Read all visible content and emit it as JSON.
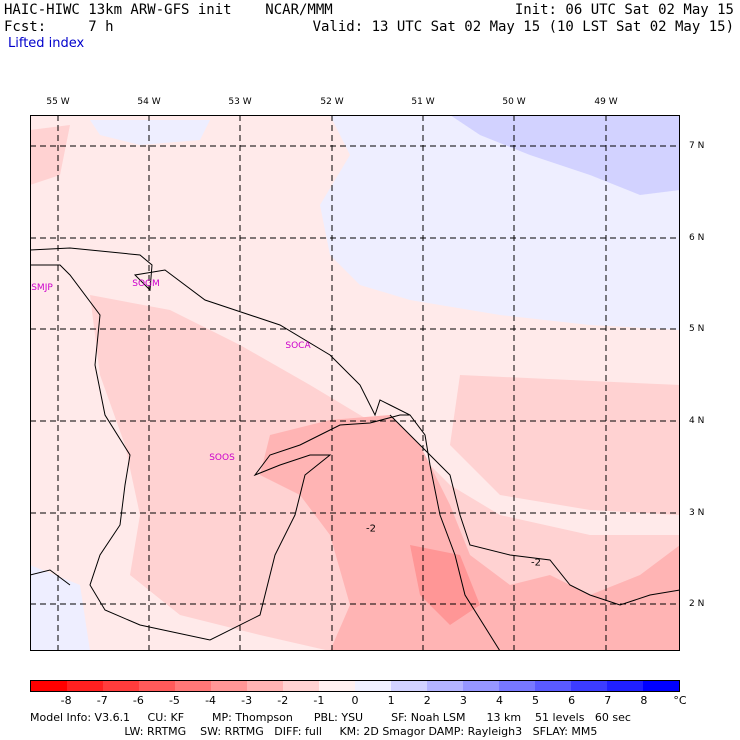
{
  "header": {
    "line1_left": "HAIC-HIWC 13km ARW-GFS init    NCAR/MMM",
    "line1_right": "Init: 06 UTC Sat 02 May 15",
    "line2_left": "Fcst:     7 h",
    "line2_right": "Valid: 13 UTC Sat 02 May 15 (10 LST Sat 02 May 15)",
    "field_name": "Lifted index"
  },
  "axes": {
    "lon_labels": [
      "55 W",
      "54 W",
      "53 W",
      "52 W",
      "51 W",
      "50 W",
      "49 W"
    ],
    "lat_labels": [
      "7 N",
      "6 N",
      "5 N",
      "4 N",
      "3 N",
      "2 N"
    ]
  },
  "stations": [
    "SMJP",
    "SOGM",
    "SOCA",
    "SOOS"
  ],
  "contour_labels": [
    "-2",
    "-2"
  ],
  "colorbar": {
    "labels": [
      "-8",
      "-7",
      "-6",
      "-5",
      "-4",
      "-3",
      "-2",
      "-1",
      "0",
      "1",
      "2",
      "3",
      "4",
      "5",
      "6",
      "7",
      "8",
      "°C"
    ],
    "colors": [
      "#ff0000",
      "#ff2020",
      "#ff3c3c",
      "#ff5a5a",
      "#ff7878",
      "#ff9696",
      "#ffb4b4",
      "#ffd2d2",
      "#fff0f0",
      "#f0f0ff",
      "#d2d2ff",
      "#b4b4ff",
      "#9696ff",
      "#7878ff",
      "#5a5aff",
      "#3c3cff",
      "#2020ff",
      "#0000ff"
    ]
  },
  "model_info": {
    "line1": "Model Info: V3.6.1     CU: KF        MP: Thompson      PBL: YSU        SF: Noah LSM      13 km    51 levels   60 sec",
    "line2": "                           LW: RRTMG    SW: RRTMG   DIFF: full     KM: 2D Smagor DAMP: Rayleigh3   SFLAY: MM5"
  }
}
